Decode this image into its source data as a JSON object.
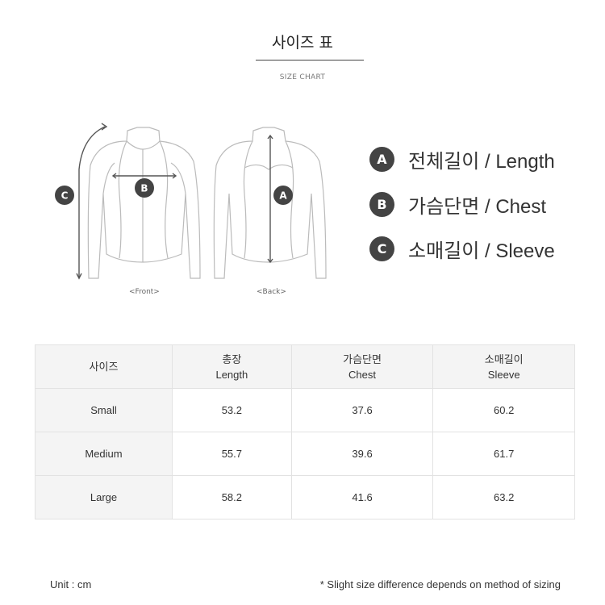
{
  "header": {
    "title": "사이즈 표",
    "subtitle": "SIZE CHART"
  },
  "illustration": {
    "front_caption": "<Front>",
    "back_caption": "<Back>",
    "markers": [
      "A",
      "B",
      "C"
    ]
  },
  "legend": [
    {
      "badge": "A",
      "label": "전체길이 / Length"
    },
    {
      "badge": "B",
      "label": "가슴단면 / Chest"
    },
    {
      "badge": "C",
      "label": "소매길이 / Sleeve"
    }
  ],
  "table": {
    "headers": [
      {
        "ko": "사이즈",
        "en": ""
      },
      {
        "ko": "총장",
        "en": "Length"
      },
      {
        "ko": "가슴단면",
        "en": "Chest"
      },
      {
        "ko": "소매길이",
        "en": "Sleeve"
      }
    ],
    "rows": [
      [
        "Small",
        "53.2",
        "37.6",
        "60.2"
      ],
      [
        "Medium",
        "55.7",
        "39.6",
        "61.7"
      ],
      [
        "Large",
        "58.2",
        "41.6",
        "63.2"
      ]
    ]
  },
  "footer": {
    "unit": "Unit : cm",
    "note": "* Slight size difference depends on method of sizing"
  },
  "colors": {
    "badge": "#444444",
    "header_bg": "#f4f4f4",
    "border": "#e2e2e2"
  }
}
